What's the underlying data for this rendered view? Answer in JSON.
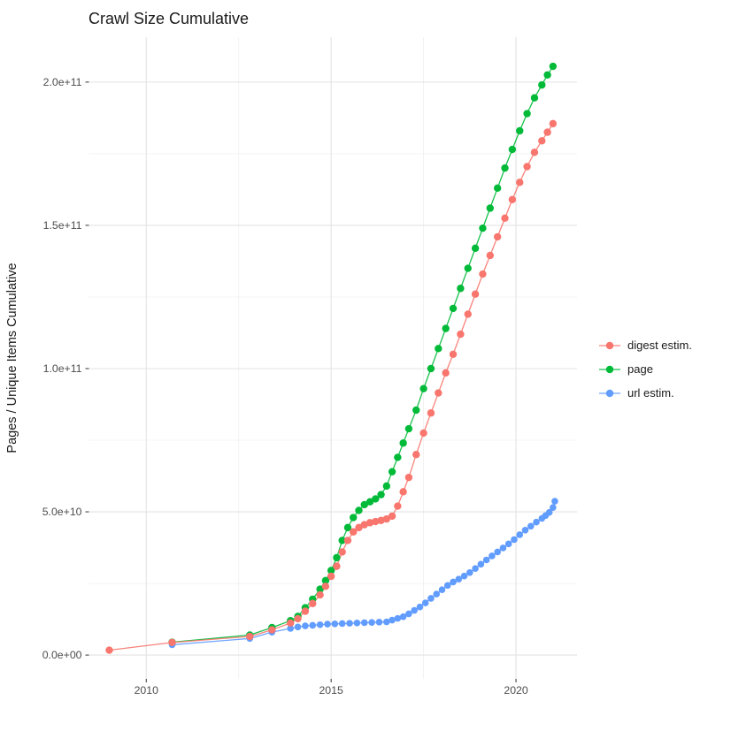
{
  "title": "Crawl Size Cumulative",
  "axes": {
    "y_title": "Pages / Unique Items Cumulative",
    "x_ticks": [
      {
        "label": "2010",
        "year": 2010
      },
      {
        "label": "2015",
        "year": 2015
      },
      {
        "label": "2020",
        "year": 2020
      }
    ],
    "y_ticks": [
      {
        "label": "0.0e+00",
        "value_e9": 0
      },
      {
        "label": "5.0e+10",
        "value_e9": 50
      },
      {
        "label": "1.0e+11",
        "value_e9": 100
      },
      {
        "label": "1.5e+11",
        "value_e9": 150
      },
      {
        "label": "2.0e+11",
        "value_e9": 200
      }
    ]
  },
  "legend": {
    "position": "right",
    "items": [
      {
        "id": "digest",
        "label": "digest estim.",
        "color": "#F8766D"
      },
      {
        "id": "page",
        "label": "page",
        "color": "#00BA38"
      },
      {
        "id": "url",
        "label": "url estim.",
        "color": "#619CFF"
      }
    ]
  },
  "chart_data": {
    "type": "line",
    "marker": "point",
    "title": "Crawl Size Cumulative",
    "xlabel": "",
    "ylabel": "Pages / Unique Items Cumulative",
    "x_unit": "year",
    "values_unit": "1e9 items",
    "xlim": [
      2008.45,
      2021.65
    ],
    "ylim_e9": [
      -8.3,
      215.7
    ],
    "grid": true,
    "x_minor": [
      2012.5,
      2017.5
    ],
    "y_minor_e9": [
      25,
      75,
      125,
      175
    ],
    "legend_position": "right",
    "draw_order": [
      "page",
      "url",
      "digest"
    ],
    "series": [
      {
        "name": "digest estim.",
        "id": "digest",
        "color": "#F8766D",
        "points": [
          [
            2009.0,
            1.7
          ],
          [
            2010.7,
            4.4
          ],
          [
            2012.8,
            6.5
          ],
          [
            2013.4,
            8.8
          ],
          [
            2013.9,
            11.2
          ],
          [
            2014.1,
            12.7
          ],
          [
            2014.3,
            15.3
          ],
          [
            2014.5,
            18
          ],
          [
            2014.7,
            21
          ],
          [
            2014.85,
            24
          ],
          [
            2015.0,
            27.5
          ],
          [
            2015.15,
            31
          ],
          [
            2015.3,
            36
          ],
          [
            2015.45,
            40
          ],
          [
            2015.6,
            43
          ],
          [
            2015.75,
            44.5
          ],
          [
            2015.9,
            45.5
          ],
          [
            2016.05,
            46.2
          ],
          [
            2016.2,
            46.6
          ],
          [
            2016.35,
            47
          ],
          [
            2016.5,
            47.5
          ],
          [
            2016.65,
            48.5
          ],
          [
            2016.8,
            52
          ],
          [
            2016.95,
            57
          ],
          [
            2017.1,
            62
          ],
          [
            2017.3,
            70
          ],
          [
            2017.5,
            77.5
          ],
          [
            2017.7,
            84.5
          ],
          [
            2017.9,
            91.5
          ],
          [
            2018.1,
            98.5
          ],
          [
            2018.3,
            105
          ],
          [
            2018.5,
            112
          ],
          [
            2018.7,
            119
          ],
          [
            2018.9,
            126
          ],
          [
            2019.1,
            133
          ],
          [
            2019.3,
            139.5
          ],
          [
            2019.5,
            146
          ],
          [
            2019.7,
            152.5
          ],
          [
            2019.9,
            159
          ],
          [
            2020.1,
            165
          ],
          [
            2020.3,
            170.5
          ],
          [
            2020.5,
            175.5
          ],
          [
            2020.7,
            179.5
          ],
          [
            2020.85,
            182.5
          ],
          [
            2021.0,
            185.5
          ]
        ]
      },
      {
        "name": "page",
        "id": "page",
        "color": "#00BA38",
        "points": [
          [
            2010.7,
            4.5
          ],
          [
            2012.8,
            7.0
          ],
          [
            2013.4,
            9.6
          ],
          [
            2013.9,
            12
          ],
          [
            2014.1,
            13.5
          ],
          [
            2014.3,
            16.5
          ],
          [
            2014.5,
            19.5
          ],
          [
            2014.7,
            23
          ],
          [
            2014.85,
            26
          ],
          [
            2015.0,
            29.5
          ],
          [
            2015.15,
            34
          ],
          [
            2015.3,
            40
          ],
          [
            2015.45,
            44.5
          ],
          [
            2015.6,
            48
          ],
          [
            2015.75,
            50.5
          ],
          [
            2015.9,
            52.5
          ],
          [
            2016.05,
            53.5
          ],
          [
            2016.2,
            54.5
          ],
          [
            2016.35,
            56
          ],
          [
            2016.5,
            59
          ],
          [
            2016.65,
            64
          ],
          [
            2016.8,
            69
          ],
          [
            2016.95,
            74
          ],
          [
            2017.1,
            79
          ],
          [
            2017.3,
            85.5
          ],
          [
            2017.5,
            93
          ],
          [
            2017.7,
            100
          ],
          [
            2017.9,
            107
          ],
          [
            2018.1,
            114
          ],
          [
            2018.3,
            121
          ],
          [
            2018.5,
            128
          ],
          [
            2018.7,
            135
          ],
          [
            2018.9,
            142
          ],
          [
            2019.1,
            149
          ],
          [
            2019.3,
            156
          ],
          [
            2019.5,
            163
          ],
          [
            2019.7,
            170
          ],
          [
            2019.9,
            176.5
          ],
          [
            2020.1,
            183
          ],
          [
            2020.3,
            189
          ],
          [
            2020.5,
            194.5
          ],
          [
            2020.7,
            199
          ],
          [
            2020.85,
            202.5
          ],
          [
            2021.0,
            205.5
          ]
        ]
      },
      {
        "name": "url estim.",
        "id": "url",
        "color": "#619CFF",
        "points": [
          [
            2010.7,
            3.6
          ],
          [
            2012.8,
            5.8
          ],
          [
            2013.4,
            8.0
          ],
          [
            2013.9,
            9.3
          ],
          [
            2014.1,
            9.8
          ],
          [
            2014.3,
            10.2
          ],
          [
            2014.5,
            10.4
          ],
          [
            2014.7,
            10.6
          ],
          [
            2014.9,
            10.8
          ],
          [
            2015.1,
            10.9
          ],
          [
            2015.3,
            11.0
          ],
          [
            2015.5,
            11.1
          ],
          [
            2015.7,
            11.2
          ],
          [
            2015.9,
            11.3
          ],
          [
            2016.1,
            11.4
          ],
          [
            2016.3,
            11.5
          ],
          [
            2016.5,
            11.6
          ],
          [
            2016.65,
            12.2
          ],
          [
            2016.8,
            12.8
          ],
          [
            2016.95,
            13.4
          ],
          [
            2017.1,
            14.4
          ],
          [
            2017.25,
            15.6
          ],
          [
            2017.4,
            16.8
          ],
          [
            2017.55,
            18.2
          ],
          [
            2017.7,
            19.8
          ],
          [
            2017.85,
            21.3
          ],
          [
            2018.0,
            22.8
          ],
          [
            2018.15,
            24.3
          ],
          [
            2018.3,
            25.5
          ],
          [
            2018.45,
            26.5
          ],
          [
            2018.6,
            27.6
          ],
          [
            2018.75,
            28.8
          ],
          [
            2018.9,
            30.2
          ],
          [
            2019.05,
            31.7
          ],
          [
            2019.2,
            33.2
          ],
          [
            2019.35,
            34.6
          ],
          [
            2019.5,
            36
          ],
          [
            2019.65,
            37.4
          ],
          [
            2019.8,
            38.8
          ],
          [
            2019.95,
            40.3
          ],
          [
            2020.1,
            42
          ],
          [
            2020.25,
            43.6
          ],
          [
            2020.4,
            45
          ],
          [
            2020.55,
            46.4
          ],
          [
            2020.7,
            47.7
          ],
          [
            2020.8,
            48.7
          ],
          [
            2020.9,
            49.8
          ],
          [
            2021.0,
            51.5
          ],
          [
            2021.05,
            53.7
          ]
        ]
      }
    ]
  }
}
